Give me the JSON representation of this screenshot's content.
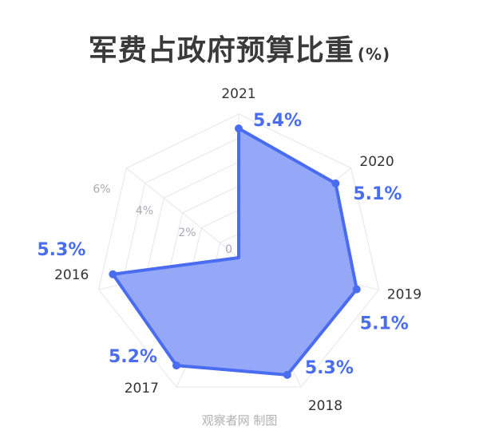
{
  "title": "军费占政府预算比重",
  "title_unit": "(%)",
  "source": "观察者网 制图",
  "chart_data": {
    "type": "radar",
    "categories": [
      "2021",
      "2020",
      "2019",
      "2018",
      "2017",
      "2016"
    ],
    "values": [
      5.4,
      5.1,
      5.1,
      5.3,
      5.2,
      5.3
    ],
    "value_labels": [
      "5.4%",
      "5.1%",
      "5.1%",
      "5.3%",
      "5.2%",
      "5.3%"
    ],
    "rlim": [
      0,
      6
    ],
    "ring_ticks": [
      0,
      2,
      4,
      6
    ],
    "ring_tick_labels": [
      "0",
      "2%",
      "4%",
      "6%"
    ],
    "grid": true,
    "colors": {
      "fill": "#8ea3f7",
      "stroke": "#4a6cf0",
      "grid": "#e4e6ef",
      "label": "#4a6cf0"
    }
  }
}
